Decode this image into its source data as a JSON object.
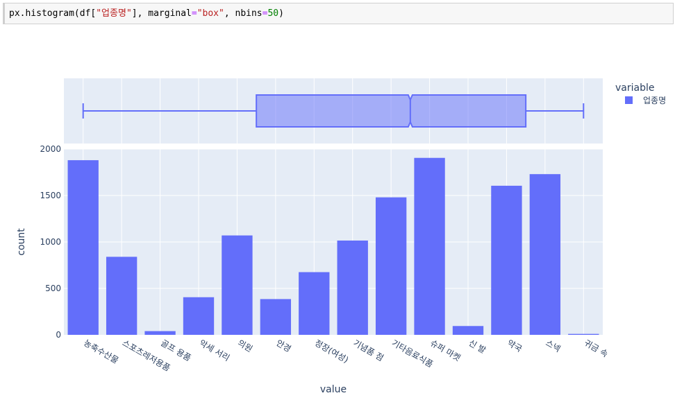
{
  "code_cell": {
    "tokens": [
      {
        "text": "px.histogram(df[",
        "kind": "plain"
      },
      {
        "text": "\"업종명\"",
        "kind": "str"
      },
      {
        "text": "], marginal",
        "kind": "plain"
      },
      {
        "text": "=",
        "kind": "op"
      },
      {
        "text": "\"box\"",
        "kind": "str"
      },
      {
        "text": ", nbins",
        "kind": "plain"
      },
      {
        "text": "=",
        "kind": "op"
      },
      {
        "text": "50",
        "kind": "num"
      },
      {
        "text": ")",
        "kind": "plain"
      }
    ]
  },
  "colors": {
    "bar": "#636efa",
    "plot_bg": "#e5ecf6",
    "grid": "#ffffff",
    "tick_text": "#2a3f5f",
    "box_fill": "rgba(99,110,250,0.5)"
  },
  "chart_data": {
    "type": "bar",
    "marginal": "box",
    "categories": [
      "농축수산물",
      "스포츠레저용품",
      "골프 용품",
      "악세 서리",
      "의원",
      "안경",
      "정장(여성)",
      "기념품 점",
      "기타음료식품",
      "슈퍼 마켓",
      "신 발",
      "약국",
      "스넥",
      "귀금 속"
    ],
    "series": [
      {
        "name": "업종명",
        "values": [
          1880,
          840,
          40,
          405,
          1070,
          385,
          675,
          1015,
          1480,
          1905,
          95,
          1605,
          1730,
          10
        ]
      }
    ],
    "box": {
      "lower_fence": 0,
      "q1": 4.5,
      "median": 8.5,
      "q3": 11.5,
      "upper_fence": 13
    },
    "xlabel": "value",
    "ylabel": "count",
    "ylim": [
      0,
      2000
    ],
    "yticks": [
      0,
      500,
      1000,
      1500,
      2000
    ],
    "grid": true,
    "legend": {
      "title": "variable",
      "placement": "top-right"
    }
  }
}
